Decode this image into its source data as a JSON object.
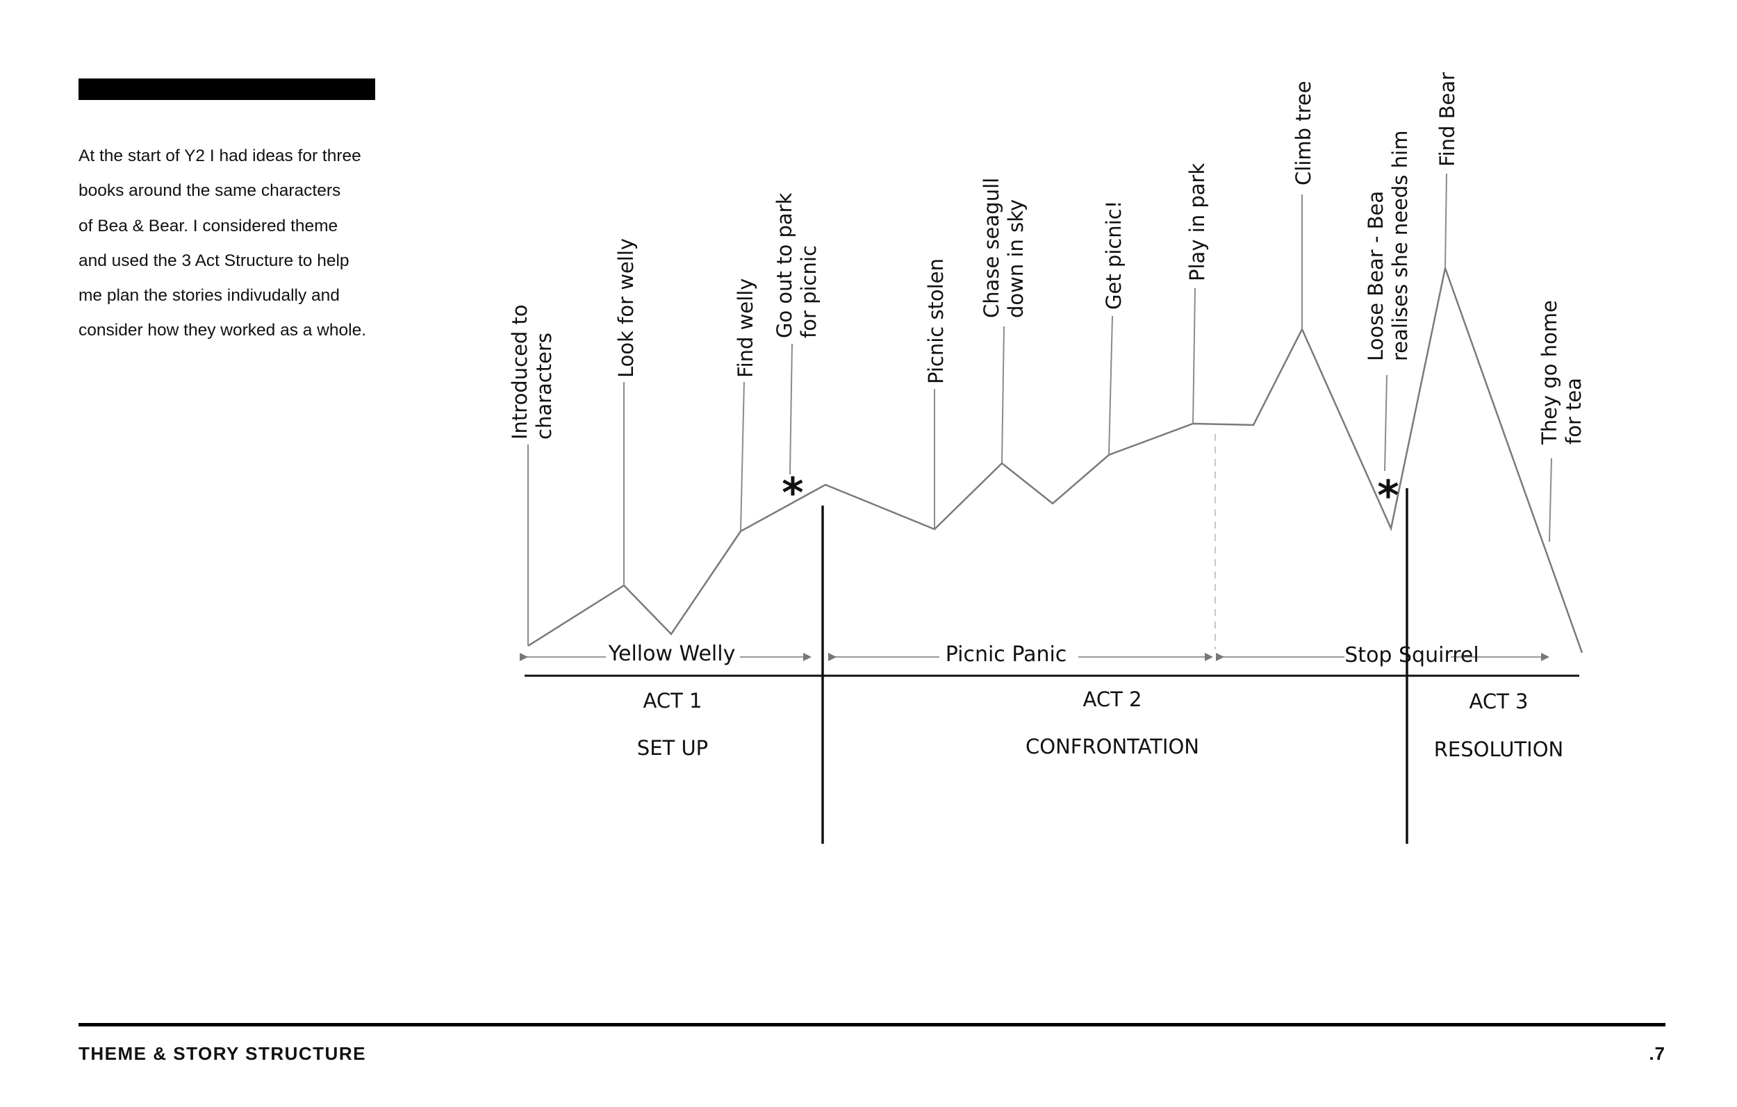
{
  "intro": {
    "lines": [
      "At the start of Y2 I had ideas for three",
      "books around the same characters",
      "of Bea & Bear. I considered theme",
      "and used the 3 Act Structure to help",
      "me plan the stories indivudally and",
      "consider how they worked as a whole."
    ]
  },
  "diagram": {
    "line_color": "#7a7a7a",
    "events": {
      "introduced_line1": "Introduced to",
      "introduced_line2": "characters",
      "look_for_welly": "Look for welly",
      "find_welly": "Find welly",
      "go_out_line1": "Go out to park",
      "go_out_line2": "for picnic",
      "picnic_stolen": "Picnic stolen",
      "chase_line1": "Chase seagull",
      "chase_line2": "down in sky",
      "get_picnic": "Get picnic!",
      "play_in_park": "Play in park",
      "climb_tree": "Climb tree",
      "loose_line1": "Loose Bear - Bea",
      "loose_line2": "realises she needs him",
      "find_bear": "Find Bear",
      "go_home_line1": "They go home",
      "go_home_line2": "for tea"
    },
    "plot_point_marker": "*",
    "books": [
      "Yellow Welly",
      "Picnic Panic",
      "Stop Squirrel"
    ],
    "acts": [
      {
        "label": "ACT 1",
        "name": "SET UP"
      },
      {
        "label": "ACT 2",
        "name": "CONFRONTATION"
      },
      {
        "label": "ACT 3",
        "name": "RESOLUTION"
      }
    ]
  },
  "footer": {
    "section_title": "THEME & STORY STRUCTURE",
    "page_number": ".7"
  }
}
